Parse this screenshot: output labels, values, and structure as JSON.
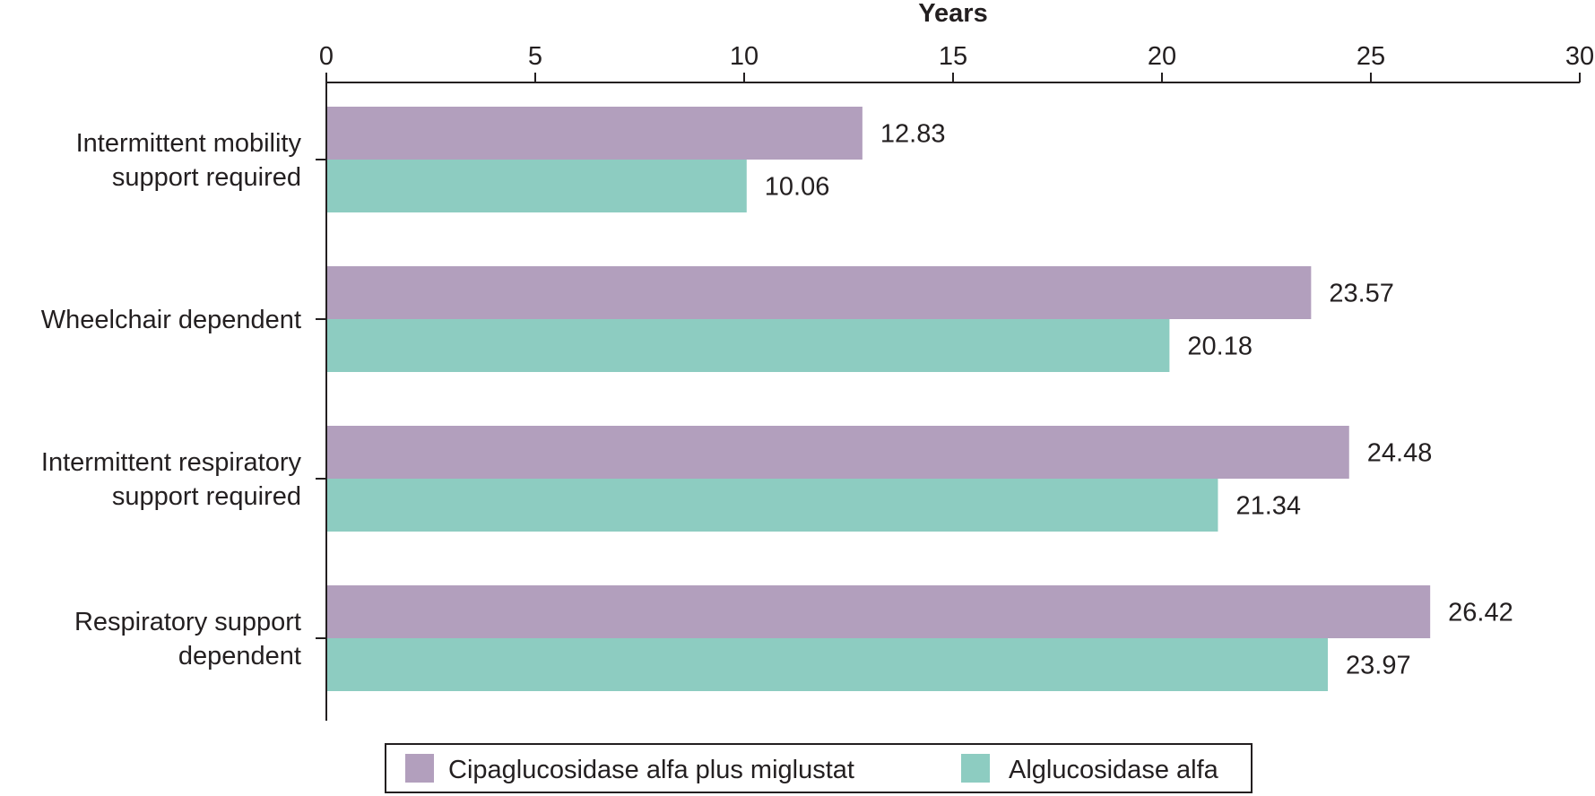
{
  "chart_data": {
    "type": "bar",
    "orientation": "horizontal",
    "xlabel": "Years",
    "xlim": [
      0,
      30
    ],
    "xticks": [
      0,
      5,
      10,
      15,
      20,
      25,
      30
    ],
    "categories": [
      [
        "Intermittent mobility",
        "support required"
      ],
      [
        "Wheelchair dependent"
      ],
      [
        "Intermittent respiratory",
        "support required"
      ],
      [
        "Respiratory support",
        "dependent"
      ]
    ],
    "series": [
      {
        "name": "Cipaglucosidase alfa plus miglustat",
        "color": "#b29fbd",
        "values": [
          12.83,
          23.57,
          24.48,
          26.42
        ],
        "labels": [
          "12.83",
          "23.57",
          "24.48",
          "26.42"
        ]
      },
      {
        "name": "Alglucosidase alfa",
        "color": "#8dccc1",
        "values": [
          10.06,
          20.18,
          21.34,
          23.97
        ],
        "labels": [
          "10.06",
          "20.18",
          "21.34",
          "23.97"
        ]
      }
    ],
    "grid": false,
    "legend_position": "bottom-center"
  }
}
